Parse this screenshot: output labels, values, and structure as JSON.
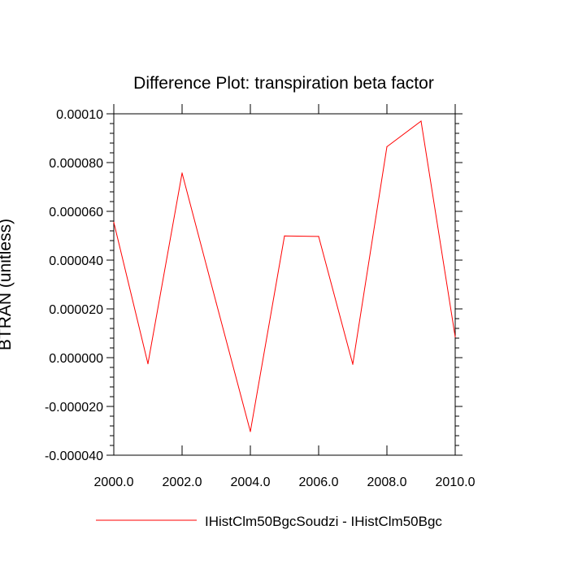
{
  "chart_data": {
    "type": "line",
    "title": "Difference Plot: transpiration beta factor",
    "ylabel": "BTRAN  (unitless)",
    "xlabel": "",
    "xlim": [
      2000,
      2010
    ],
    "ylim": [
      -4e-05,
      0.0001
    ],
    "x_ticks": [
      2000,
      2002,
      2004,
      2006,
      2008,
      2010
    ],
    "x_tick_labels": [
      "2000.0",
      "2002.0",
      "2004.0",
      "2006.0",
      "2008.0",
      "2010.0"
    ],
    "y_ticks": [
      -4e-05,
      -2e-05,
      0,
      2e-05,
      4e-05,
      6e-05,
      8e-05,
      0.0001
    ],
    "y_tick_labels": [
      "-0.000040",
      "-0.000020",
      "0.000000",
      "0.000020",
      "0.000040",
      "0.000060",
      "0.000080",
      "0.00010"
    ],
    "grid": false,
    "legend_position": "bottom",
    "series": [
      {
        "name": "IHistClm50BgcSoudzi - IHistClm50Bgc",
        "color": "#ff0000",
        "x": [
          2000,
          2001,
          2002,
          2003,
          2004,
          2005,
          2006,
          2007,
          2008,
          2009,
          2010
        ],
        "values": [
          5.55e-05,
          -2.5e-06,
          7.57e-05,
          2.25e-05,
          -3.03e-05,
          4.99e-05,
          4.97e-05,
          -2.7e-06,
          8.65e-05,
          9.7e-05,
          8.5e-06
        ]
      }
    ]
  }
}
